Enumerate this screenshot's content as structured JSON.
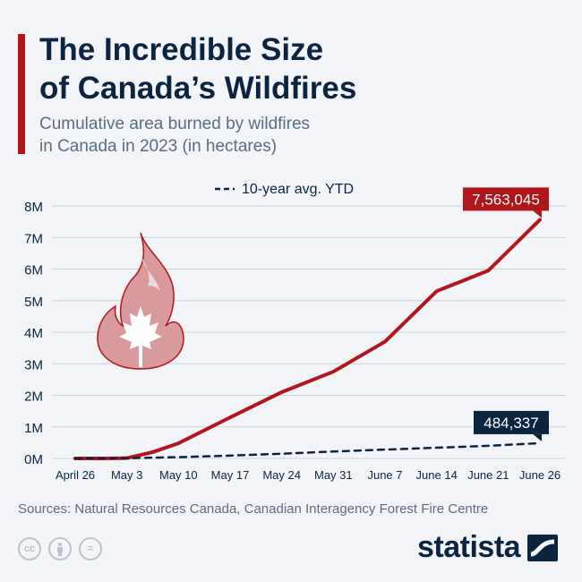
{
  "header": {
    "title_line1": "The Incredible Size",
    "title_line2": "of Canada’s Wildfires",
    "subtitle_line1": "Cumulative area burned by wildfires",
    "subtitle_line2": "in Canada in 2023 (in hectares)"
  },
  "chart_data": {
    "type": "line",
    "title": "",
    "xlabel": "",
    "ylabel": "",
    "categories": [
      "April 26",
      "May 3",
      "May 10",
      "May 17",
      "May 24",
      "May 31",
      "June 7",
      "June 14",
      "June 21",
      "June 26"
    ],
    "y_ticks": [
      "0M",
      "1M",
      "2M",
      "3M",
      "4M",
      "5M",
      "6M",
      "7M",
      "8M"
    ],
    "ylim": [
      0,
      8000000
    ],
    "grid": true,
    "legend_position": "top",
    "series": [
      {
        "style": "solid",
        "color": "#b1161b",
        "points": [
          [
            0,
            0
          ],
          [
            0.5,
            0
          ],
          [
            1,
            10000
          ],
          [
            1.5,
            200000
          ],
          [
            2,
            480000
          ],
          [
            3,
            1300000
          ],
          [
            4,
            2100000
          ],
          [
            5,
            2750000
          ],
          [
            6,
            3700000
          ],
          [
            7,
            5300000
          ],
          [
            8,
            5950000
          ],
          [
            9,
            7563045
          ]
        ],
        "end_label": "7,563,045"
      },
      {
        "name": "10-year avg. YTD",
        "style": "dashed",
        "color": "#0b2540",
        "points": [
          [
            0,
            0
          ],
          [
            1,
            8000
          ],
          [
            2,
            40000
          ],
          [
            3,
            90000
          ],
          [
            4,
            150000
          ],
          [
            5,
            220000
          ],
          [
            6,
            280000
          ],
          [
            7,
            340000
          ],
          [
            8,
            400000
          ],
          [
            9,
            484337
          ]
        ],
        "end_label": "484,337"
      }
    ]
  },
  "footer": {
    "source": "Sources: Natural Resources Canada, Canadian Interagency Forest Fire Centre",
    "brand": "statista",
    "license_icons": [
      "cc",
      "by",
      "="
    ]
  },
  "icons": [
    "flame-maple-leaf-icon",
    "creative-commons-icon",
    "attribution-icon",
    "no-derivatives-icon",
    "statista-logo-icon"
  ],
  "colors": {
    "accent": "#b1161b",
    "navy": "#0b2540",
    "text_muted": "#5a6d80",
    "grid": "#c8d2de",
    "background": "#f2f4f8"
  }
}
